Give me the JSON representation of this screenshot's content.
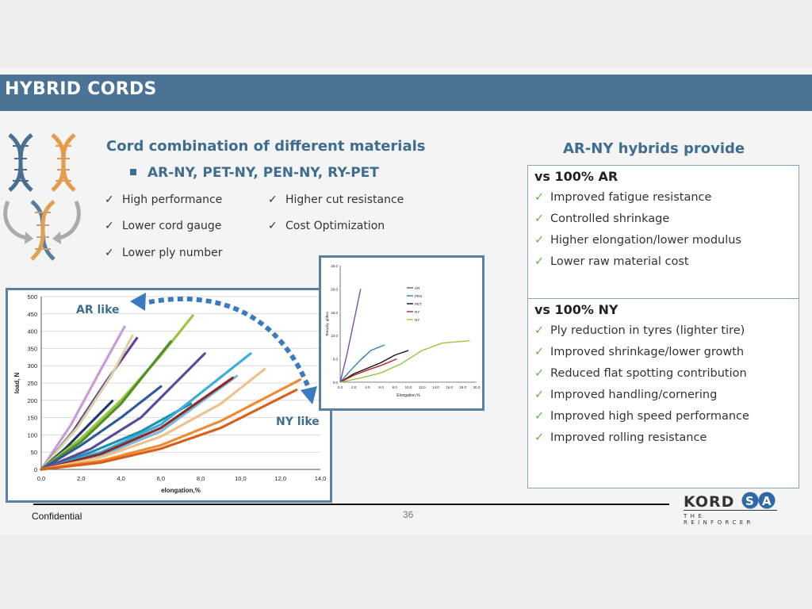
{
  "title": "HYBRID CORDS",
  "left_heading": "Cord combination of different materials",
  "combos": "AR-NY, PET-NY, PEN-NY, RY-PET",
  "features_left": [
    "High performance",
    "Lower cord gauge",
    "Lower ply number"
  ],
  "features_right": [
    "Higher cut resistance",
    "Cost Optimization"
  ],
  "check_glyph": "✓",
  "right_heading": "AR-NY hybrids provide",
  "vs_ar": {
    "heading": "vs 100% AR",
    "items": [
      "Improved fatigue resistance",
      "Controlled shrinkage",
      "Higher elongation/lower modulus",
      "Lower raw material cost"
    ]
  },
  "vs_ny": {
    "heading": "vs 100% NY",
    "items": [
      "Ply reduction in tyres (lighter tire)",
      "Improved shrinkage/lower growth",
      "Reduced flat spotting contribution",
      "Improved handling/cornering",
      "Improved high speed performance",
      "Improved rolling resistance"
    ]
  },
  "ar_like": "AR like",
  "ny_like": "NY like",
  "footer": {
    "confidential": "Confidential",
    "page": "36"
  },
  "logo": {
    "text": "KORDSA",
    "tagline": "THE REINFORCER"
  },
  "icons": [
    "dna-icon",
    "refresh-arrow-icon",
    "check-icon",
    "square-bullet-icon"
  ],
  "colors": {
    "title_bar": "#4a7396",
    "heading_blue": "#3e6d90",
    "check_green": "#6ab04c",
    "arrow_blue": "#3a7bbf"
  },
  "chart_data": [
    {
      "type": "scatter",
      "xlabel": "elongation,%",
      "ylabel": "load, N",
      "xlim": [
        0,
        14
      ],
      "ylim": [
        0,
        500
      ],
      "x_ticks": [
        "0,0",
        "2,0",
        "4,0",
        "6,0",
        "8,0",
        "10,0",
        "12,0",
        "14,0"
      ],
      "y_ticks": [
        "0",
        "50",
        "100",
        "150",
        "200",
        "250",
        "300",
        "350",
        "400",
        "450",
        "500"
      ],
      "grid": "horizontal",
      "series": [
        {
          "color": "#c89ad6",
          "x": [
            0,
            1.5,
            3.0,
            4.2
          ],
          "y": [
            0,
            130,
            290,
            415
          ]
        },
        {
          "color": "#6a3c9a",
          "x": [
            0,
            1.6,
            3.2,
            4.8
          ],
          "y": [
            0,
            110,
            250,
            380
          ]
        },
        {
          "color": "#d6d6a0",
          "x": [
            0,
            1.8,
            3.5,
            4.6
          ],
          "y": [
            0,
            120,
            270,
            390
          ]
        },
        {
          "color": "#1f3a6e",
          "x": [
            0,
            1.2,
            2.4,
            3.6
          ],
          "y": [
            0,
            60,
            130,
            200
          ]
        },
        {
          "color": "#9ac43c",
          "x": [
            0,
            2.0,
            4.0,
            6.0,
            7.6
          ],
          "y": [
            0,
            90,
            200,
            330,
            445
          ]
        },
        {
          "color": "#4f8f2a",
          "x": [
            0,
            2.0,
            4.0,
            6.5
          ],
          "y": [
            0,
            80,
            190,
            370
          ]
        },
        {
          "color": "#2f5a9a",
          "x": [
            0,
            2.0,
            4.0,
            6.0
          ],
          "y": [
            0,
            70,
            150,
            240
          ]
        },
        {
          "color": "#1f8fb0",
          "x": [
            0,
            2.5,
            5.0,
            7.5
          ],
          "y": [
            0,
            50,
            110,
            190
          ]
        },
        {
          "color": "#5a4a9a",
          "x": [
            0,
            2.5,
            5.0,
            8.2
          ],
          "y": [
            0,
            60,
            150,
            335
          ]
        },
        {
          "color": "#3aaed6",
          "x": [
            0,
            3.0,
            6.0,
            10.5
          ],
          "y": [
            0,
            50,
            130,
            335
          ]
        },
        {
          "color": "#7ab8d6",
          "x": [
            0,
            3.0,
            6.0,
            9.8
          ],
          "y": [
            0,
            40,
            110,
            270
          ]
        },
        {
          "color": "#8a2a2a",
          "x": [
            0,
            3.0,
            6.0,
            9.6
          ],
          "y": [
            0,
            45,
            120,
            265
          ]
        },
        {
          "color": "#f0c08a",
          "x": [
            0,
            3.0,
            6.0,
            9.0,
            11.2
          ],
          "y": [
            0,
            35,
            95,
            190,
            290
          ]
        },
        {
          "color": "#f08a30",
          "x": [
            0,
            3.0,
            6.0,
            9.0,
            13.0
          ],
          "y": [
            0,
            25,
            70,
            140,
            260
          ]
        },
        {
          "color": "#d85f1a",
          "x": [
            0,
            3.0,
            6.0,
            9.0,
            12.8
          ],
          "y": [
            0,
            20,
            60,
            120,
            230
          ]
        }
      ]
    },
    {
      "type": "line",
      "xlabel": "Elongation,%",
      "ylabel": "Tenacity, g/dtex",
      "xlim": [
        0,
        20
      ],
      "ylim": [
        0,
        25
      ],
      "x_ticks": [
        "0.0",
        "2.0",
        "4.0",
        "6.0",
        "8.0",
        "10.0",
        "12.0",
        "14.0",
        "16.0",
        "18.0",
        "20.0"
      ],
      "y_ticks": [
        "0.0",
        "5.0",
        "10.0",
        "15.0",
        "20.0",
        "25.0"
      ],
      "series": [
        {
          "name": "AR",
          "color": "#7a4fa0",
          "x": [
            0,
            1.0,
            2.0,
            3.0
          ],
          "y": [
            0,
            6,
            13,
            20
          ]
        },
        {
          "name": "PEN",
          "color": "#2f80c0",
          "x": [
            0,
            1.5,
            3.0,
            4.5,
            6.5
          ],
          "y": [
            0,
            2.5,
            4.8,
            6.8,
            8.0
          ]
        },
        {
          "name": "PET",
          "color": "#111111",
          "x": [
            0,
            2.0,
            4.0,
            6.0,
            8.0,
            10.0
          ],
          "y": [
            0,
            1.8,
            3.0,
            4.2,
            5.8,
            6.8
          ]
        },
        {
          "name": "RY",
          "color": "#b8202a",
          "x": [
            0,
            2.0,
            4.0,
            6.0,
            8.3
          ],
          "y": [
            0,
            1.5,
            2.6,
            3.6,
            5.0
          ]
        },
        {
          "name": "NY",
          "color": "#9ac43c",
          "x": [
            0,
            3.0,
            6.0,
            9.0,
            12.0,
            15.0,
            19.0
          ],
          "y": [
            0,
            0.9,
            2.0,
            4.0,
            6.8,
            8.4,
            8.9
          ]
        }
      ]
    }
  ]
}
